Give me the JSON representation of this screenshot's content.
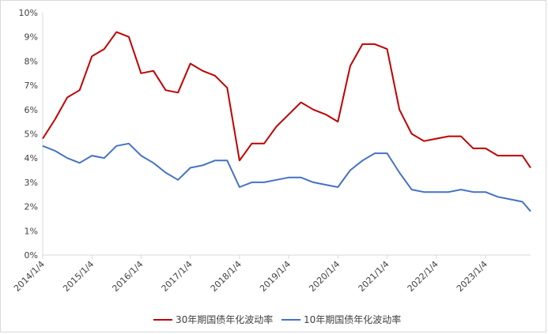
{
  "colors": {
    "series_30y": "#c00000",
    "series_10y": "#4472c4",
    "axis": "#d9d9d9"
  },
  "chart_data": {
    "type": "line",
    "title": "",
    "xlabel": "",
    "ylabel": "",
    "x_ticks": [
      "2014/1/4",
      "2015/1/4",
      "2016/1/4",
      "2017/1/4",
      "2018/1/4",
      "2019/1/4",
      "2020/1/4",
      "2021/1/4",
      "2022/1/4",
      "2023/1/4"
    ],
    "y_ticks": [
      "0%",
      "1%",
      "2%",
      "3%",
      "4%",
      "5%",
      "6%",
      "7%",
      "8%",
      "9%",
      "10%"
    ],
    "ylim": [
      0,
      10
    ],
    "y_unit": "%",
    "grid": false,
    "legend_position": "bottom",
    "x": [
      "2014-01",
      "2014-04",
      "2014-07",
      "2014-10",
      "2015-01",
      "2015-04",
      "2015-07",
      "2015-10",
      "2016-01",
      "2016-04",
      "2016-07",
      "2016-10",
      "2017-01",
      "2017-04",
      "2017-07",
      "2017-10",
      "2018-01",
      "2018-04",
      "2018-07",
      "2018-10",
      "2019-01",
      "2019-04",
      "2019-07",
      "2019-10",
      "2020-01",
      "2020-04",
      "2020-07",
      "2020-10",
      "2021-01",
      "2021-04",
      "2021-07",
      "2021-10",
      "2022-01",
      "2022-04",
      "2022-07",
      "2022-10",
      "2023-01",
      "2023-04",
      "2023-07",
      "2023-10",
      "2023-12"
    ],
    "series": [
      {
        "name": "30年期国债年化波动率",
        "values": [
          4.8,
          5.6,
          6.5,
          6.8,
          8.2,
          8.5,
          9.2,
          9.0,
          7.5,
          7.6,
          6.8,
          6.7,
          7.9,
          7.6,
          7.4,
          6.9,
          3.9,
          4.6,
          4.6,
          5.3,
          5.8,
          6.3,
          6.0,
          5.8,
          5.5,
          7.8,
          8.7,
          8.7,
          8.5,
          6.0,
          5.0,
          4.7,
          4.8,
          4.9,
          4.9,
          4.4,
          4.4,
          4.1,
          4.1,
          4.1,
          3.6
        ]
      },
      {
        "name": "10年期国债年化波动率",
        "values": [
          4.5,
          4.3,
          4.0,
          3.8,
          4.1,
          4.0,
          4.5,
          4.6,
          4.1,
          3.8,
          3.4,
          3.1,
          3.6,
          3.7,
          3.9,
          3.9,
          2.8,
          3.0,
          3.0,
          3.1,
          3.2,
          3.2,
          3.0,
          2.9,
          2.8,
          3.5,
          3.9,
          4.2,
          4.2,
          3.4,
          2.7,
          2.6,
          2.6,
          2.6,
          2.7,
          2.6,
          2.6,
          2.4,
          2.3,
          2.2,
          1.8
        ]
      }
    ]
  }
}
